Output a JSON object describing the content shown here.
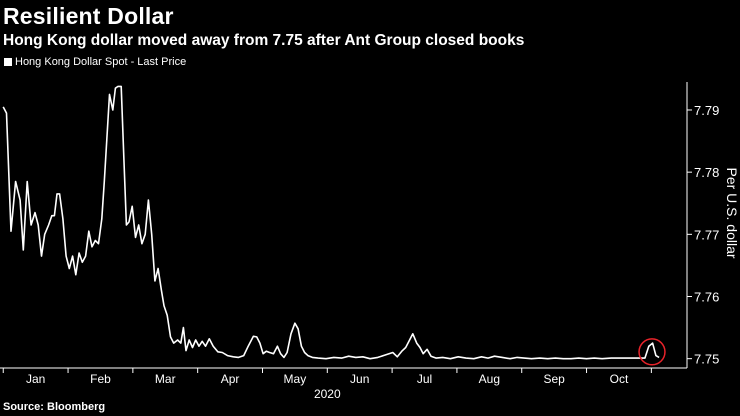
{
  "header": {
    "title": "Resilient Dollar",
    "subtitle": "Hong Kong dollar moved away from 7.75 after Ant Group closed books"
  },
  "legend": {
    "label": "Hong Kong Dollar Spot - Last Price"
  },
  "footer": {
    "source": "Source: Bloomberg"
  },
  "colors": {
    "background": "#000000",
    "line": "#ffffff",
    "highlight": "#e8232a"
  },
  "chart_data": {
    "type": "line",
    "title": "Resilient Dollar",
    "subtitle": "Hong Kong dollar moved away from 7.75 after Ant Group closed books",
    "xlabel": "2020",
    "ylabel": "Per U.S. dollar",
    "x_month_index": [
      0,
      1,
      2,
      3,
      4,
      5,
      6,
      7,
      8,
      9,
      10
    ],
    "x_ticks": [
      "Jan",
      "Feb",
      "Mar",
      "Apr",
      "May",
      "Jun",
      "Jul",
      "Aug",
      "Sep",
      "Oct"
    ],
    "y_ticks": [
      7.75,
      7.76,
      7.77,
      7.78,
      7.79
    ],
    "ylim": [
      7.7485,
      7.7945
    ],
    "xlim": [
      -0.05,
      10.55
    ],
    "grid": false,
    "legend_position": "top-left",
    "series": [
      {
        "name": "Hong Kong Dollar Spot - Last Price",
        "points": [
          [
            0.0,
            7.7905
          ],
          [
            0.05,
            7.7895
          ],
          [
            0.12,
            7.7705
          ],
          [
            0.19,
            7.7785
          ],
          [
            0.26,
            7.7755
          ],
          [
            0.31,
            7.7675
          ],
          [
            0.37,
            7.7785
          ],
          [
            0.43,
            7.7715
          ],
          [
            0.49,
            7.7735
          ],
          [
            0.54,
            7.7715
          ],
          [
            0.59,
            7.7665
          ],
          [
            0.64,
            7.77
          ],
          [
            0.7,
            7.7715
          ],
          [
            0.75,
            7.773
          ],
          [
            0.79,
            7.773
          ],
          [
            0.83,
            7.7765
          ],
          [
            0.87,
            7.7765
          ],
          [
            0.92,
            7.7725
          ],
          [
            0.97,
            7.7665
          ],
          [
            1.02,
            7.7645
          ],
          [
            1.07,
            7.7665
          ],
          [
            1.12,
            7.7635
          ],
          [
            1.17,
            7.767
          ],
          [
            1.22,
            7.7655
          ],
          [
            1.27,
            7.7665
          ],
          [
            1.32,
            7.7705
          ],
          [
            1.37,
            7.768
          ],
          [
            1.42,
            7.769
          ],
          [
            1.47,
            7.7685
          ],
          [
            1.52,
            7.7725
          ],
          [
            1.56,
            7.7785
          ],
          [
            1.6,
            7.7855
          ],
          [
            1.64,
            7.7925
          ],
          [
            1.69,
            7.79
          ],
          [
            1.73,
            7.7935
          ],
          [
            1.77,
            7.7938
          ],
          [
            1.82,
            7.7938
          ],
          [
            1.86,
            7.7825
          ],
          [
            1.9,
            7.7715
          ],
          [
            1.94,
            7.772
          ],
          [
            1.99,
            7.7745
          ],
          [
            2.04,
            7.7695
          ],
          [
            2.09,
            7.7715
          ],
          [
            2.14,
            7.7685
          ],
          [
            2.19,
            7.77
          ],
          [
            2.24,
            7.7755
          ],
          [
            2.29,
            7.77
          ],
          [
            2.34,
            7.7625
          ],
          [
            2.39,
            7.7645
          ],
          [
            2.44,
            7.761
          ],
          [
            2.48,
            7.7585
          ],
          [
            2.53,
            7.757
          ],
          [
            2.58,
            7.7535
          ],
          [
            2.63,
            7.7525
          ],
          [
            2.69,
            7.753
          ],
          [
            2.74,
            7.7525
          ],
          [
            2.78,
            7.755
          ],
          [
            2.82,
            7.7513
          ],
          [
            2.87,
            7.753
          ],
          [
            2.92,
            7.7518
          ],
          [
            2.97,
            7.753
          ],
          [
            3.02,
            7.752
          ],
          [
            3.07,
            7.7528
          ],
          [
            3.12,
            7.752
          ],
          [
            3.18,
            7.7532
          ],
          [
            3.24,
            7.752
          ],
          [
            3.31,
            7.7511
          ],
          [
            3.38,
            7.751
          ],
          [
            3.46,
            7.7505
          ],
          [
            3.55,
            7.7503
          ],
          [
            3.63,
            7.7502
          ],
          [
            3.71,
            7.7505
          ],
          [
            3.78,
            7.752
          ],
          [
            3.86,
            7.7536
          ],
          [
            3.91,
            7.7535
          ],
          [
            3.96,
            7.7525
          ],
          [
            4.01,
            7.7508
          ],
          [
            4.06,
            7.7512
          ],
          [
            4.11,
            7.751
          ],
          [
            4.17,
            7.7508
          ],
          [
            4.23,
            7.752
          ],
          [
            4.28,
            7.7508
          ],
          [
            4.33,
            7.7502
          ],
          [
            4.38,
            7.751
          ],
          [
            4.44,
            7.754
          ],
          [
            4.5,
            7.7557
          ],
          [
            4.55,
            7.7548
          ],
          [
            4.6,
            7.752
          ],
          [
            4.65,
            7.751
          ],
          [
            4.7,
            7.7505
          ],
          [
            4.77,
            7.7502
          ],
          [
            4.86,
            7.7501
          ],
          [
            4.98,
            7.75
          ],
          [
            5.1,
            7.7502
          ],
          [
            5.22,
            7.7501
          ],
          [
            5.33,
            7.7504
          ],
          [
            5.44,
            7.7502
          ],
          [
            5.55,
            7.7503
          ],
          [
            5.66,
            7.75
          ],
          [
            5.78,
            7.7502
          ],
          [
            5.9,
            7.7506
          ],
          [
            6.01,
            7.751
          ],
          [
            6.08,
            7.7503
          ],
          [
            6.15,
            7.7512
          ],
          [
            6.21,
            7.7518
          ],
          [
            6.27,
            7.753
          ],
          [
            6.32,
            7.754
          ],
          [
            6.38,
            7.7525
          ],
          [
            6.43,
            7.7518
          ],
          [
            6.48,
            7.7508
          ],
          [
            6.54,
            7.7515
          ],
          [
            6.6,
            7.7504
          ],
          [
            6.68,
            7.7501
          ],
          [
            6.78,
            7.7502
          ],
          [
            6.9,
            7.75
          ],
          [
            7.02,
            7.7503
          ],
          [
            7.14,
            7.7501
          ],
          [
            7.26,
            7.75
          ],
          [
            7.38,
            7.7503
          ],
          [
            7.48,
            7.7501
          ],
          [
            7.58,
            7.7504
          ],
          [
            7.7,
            7.7502
          ],
          [
            7.82,
            7.75
          ],
          [
            7.93,
            7.7502
          ],
          [
            8.04,
            7.7501
          ],
          [
            8.15,
            7.75
          ],
          [
            8.28,
            7.7501
          ],
          [
            8.4,
            7.75
          ],
          [
            8.52,
            7.7501
          ],
          [
            8.64,
            7.75
          ],
          [
            8.76,
            7.75
          ],
          [
            8.88,
            7.7501
          ],
          [
            9.0,
            7.75
          ],
          [
            9.12,
            7.7501
          ],
          [
            9.24,
            7.75
          ],
          [
            9.38,
            7.7501
          ],
          [
            9.52,
            7.7501
          ],
          [
            9.66,
            7.7501
          ],
          [
            9.8,
            7.7501
          ],
          [
            9.9,
            7.7501
          ],
          [
            9.96,
            7.752
          ],
          [
            10.02,
            7.7525
          ],
          [
            10.07,
            7.7505
          ],
          [
            10.12,
            7.7502
          ]
        ]
      }
    ],
    "annotations": [
      {
        "type": "circle",
        "x": 10.01,
        "y": 7.7511,
        "radius_months": 0.2,
        "color": "#e8232a"
      }
    ]
  }
}
